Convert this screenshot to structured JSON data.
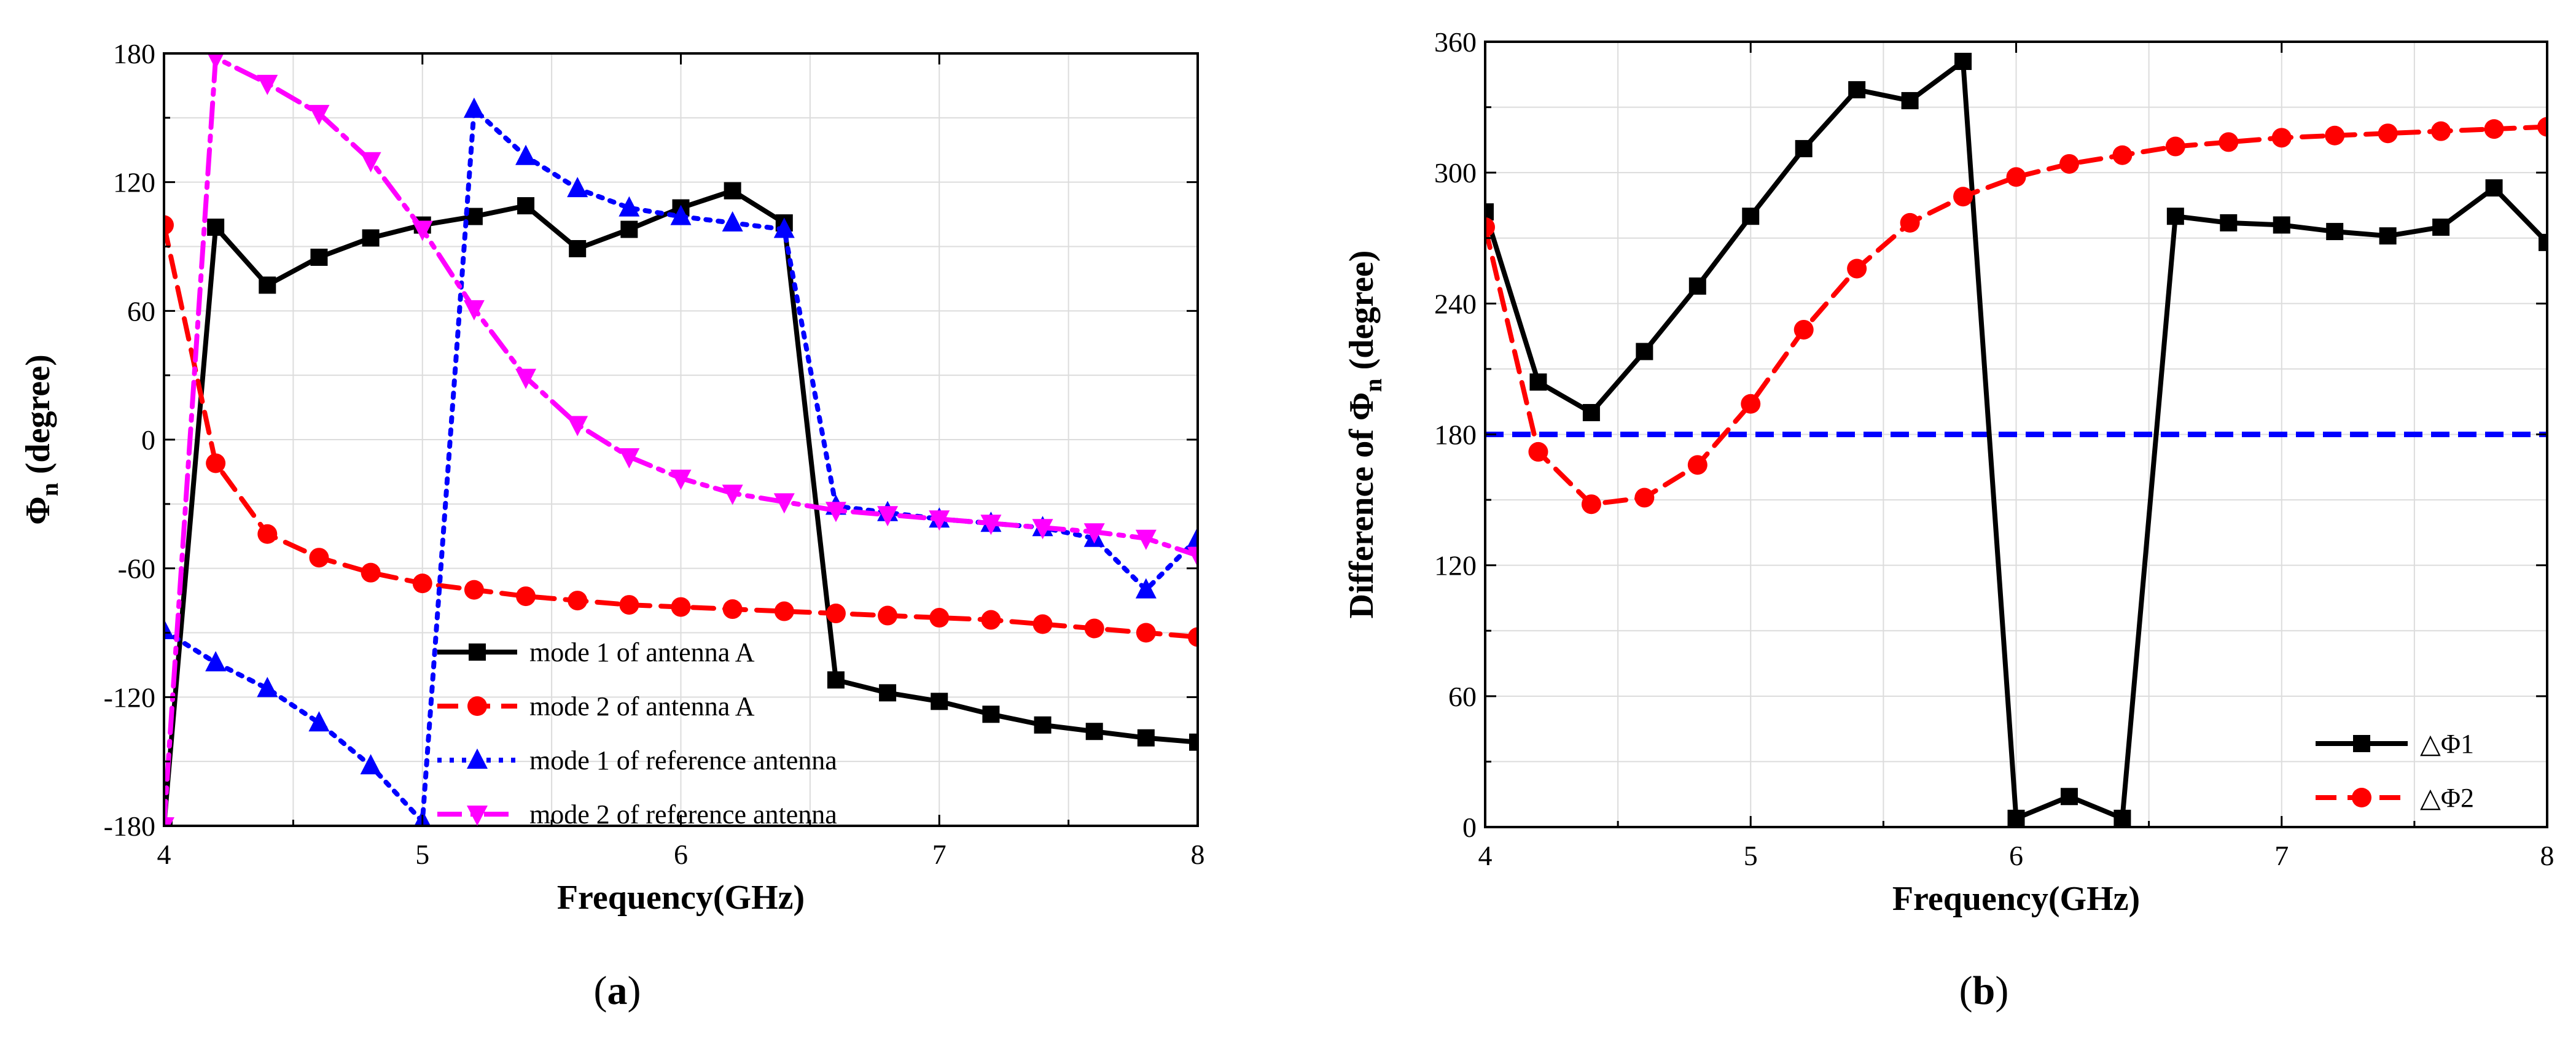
{
  "chart_data": [
    {
      "type": "line",
      "panel": "a",
      "caption_letter": "a",
      "xlabel": "Frequency(GHz)",
      "ylabel_main": "Φ",
      "ylabel_sub": "n",
      "ylabel_unit": " (degree)",
      "xlim": [
        4,
        8
      ],
      "ylim": [
        -180,
        180
      ],
      "xticks": [
        "4",
        "5",
        "6",
        "7",
        "8"
      ],
      "yticks": [
        "-180",
        "-120",
        "-60",
        "0",
        "60",
        "120",
        "180"
      ],
      "grid": true,
      "legend": "lower-right",
      "series": [
        {
          "name": "mode 1 of antenna A",
          "color": "#000000",
          "dash": "solid",
          "marker": "square",
          "x": [
            4.0,
            4.2,
            4.4,
            4.6,
            4.8,
            5.0,
            5.2,
            5.4,
            5.6,
            5.8,
            6.0,
            6.2,
            6.4,
            6.6,
            6.8,
            7.0,
            7.2,
            7.4,
            7.6,
            7.8,
            8.0
          ],
          "y": [
            -180,
            99,
            72,
            85,
            94,
            100,
            104,
            109,
            89,
            98,
            108,
            116,
            101,
            -112,
            -118,
            -122,
            -128,
            -133,
            -136,
            -139,
            -141
          ]
        },
        {
          "name": "mode 2 of antenna A",
          "color": "#ff0000",
          "dash": "dash",
          "marker": "circle",
          "x": [
            4.0,
            4.2,
            4.4,
            4.6,
            4.8,
            5.0,
            5.2,
            5.4,
            5.6,
            5.8,
            6.0,
            6.2,
            6.4,
            6.6,
            6.8,
            7.0,
            7.2,
            7.4,
            7.6,
            7.8,
            8.0
          ],
          "y": [
            100,
            -11,
            -44,
            -55,
            -62,
            -67,
            -70,
            -73,
            -75,
            -77,
            -78,
            -79,
            -80,
            -81,
            -82,
            -83,
            -84,
            -86,
            -88,
            -90,
            -92
          ]
        },
        {
          "name": "mode 1 of reference antenna",
          "color": "#0000ff",
          "dash": "dot",
          "marker": "triangle-up",
          "x": [
            4.0,
            4.2,
            4.4,
            4.6,
            4.8,
            5.0,
            5.2,
            5.4,
            5.6,
            5.8,
            6.0,
            6.2,
            6.4,
            6.6,
            6.8,
            7.0,
            7.2,
            7.4,
            7.6,
            7.8,
            8.0
          ],
          "y": [
            -89,
            -104,
            -116,
            -132,
            -152,
            -178,
            154,
            132,
            117,
            108,
            104,
            101,
            98,
            -31,
            -34,
            -37,
            -39,
            -41,
            -46,
            -70,
            -46
          ]
        },
        {
          "name": "mode 2 of reference antenna",
          "color": "#ff00ff",
          "dash": "dashdot",
          "marker": "triangle-down",
          "x": [
            4.0,
            4.2,
            4.4,
            4.6,
            4.8,
            5.0,
            5.2,
            5.4,
            5.6,
            5.8,
            6.0,
            6.2,
            6.4,
            6.6,
            6.8,
            7.0,
            7.2,
            7.4,
            7.6,
            7.8,
            8.0
          ],
          "y": [
            -180,
            178,
            166,
            152,
            130,
            98,
            61,
            29,
            7,
            -8,
            -18,
            -25,
            -29,
            -33,
            -35,
            -37,
            -39,
            -41,
            -43,
            -46,
            -54
          ]
        }
      ]
    },
    {
      "type": "line",
      "panel": "b",
      "caption_letter": "b",
      "xlabel": "Frequency(GHz)",
      "ylabel_main": "Difference of Φ",
      "ylabel_sub": "n",
      "ylabel_unit": " (degree)",
      "xlim": [
        4,
        8
      ],
      "ylim": [
        0,
        360
      ],
      "xticks": [
        "4",
        "5",
        "6",
        "7",
        "8"
      ],
      "yticks": [
        "0",
        "60",
        "120",
        "180",
        "240",
        "300",
        "360"
      ],
      "grid": true,
      "legend": "lower-right",
      "reference_line": {
        "y": 180,
        "color": "#0000ff"
      },
      "series": [
        {
          "name": "△Φ1",
          "color": "#000000",
          "dash": "solid",
          "marker": "square",
          "x": [
            4.0,
            4.2,
            4.4,
            4.6,
            4.8,
            5.0,
            5.2,
            5.4,
            5.6,
            5.8,
            6.0,
            6.2,
            6.4,
            6.6,
            6.8,
            7.0,
            7.2,
            7.4,
            7.6,
            7.8,
            8.0
          ],
          "y": [
            282,
            204,
            190,
            218,
            248,
            280,
            311,
            338,
            333,
            351,
            4,
            14,
            4,
            280,
            277,
            276,
            273,
            271,
            275,
            293,
            268
          ]
        },
        {
          "name": "△Φ2",
          "color": "#ff0000",
          "dash": "dash",
          "marker": "circle",
          "x": [
            4.0,
            4.2,
            4.4,
            4.6,
            4.8,
            5.0,
            5.2,
            5.4,
            5.6,
            5.8,
            6.0,
            6.2,
            6.4,
            6.6,
            6.8,
            7.0,
            7.2,
            7.4,
            7.6,
            7.8,
            8.0
          ],
          "y": [
            275,
            172,
            148,
            151,
            166,
            194,
            228,
            256,
            277,
            289,
            298,
            304,
            308,
            312,
            314,
            316,
            317,
            318,
            319,
            320,
            321
          ]
        }
      ]
    }
  ]
}
